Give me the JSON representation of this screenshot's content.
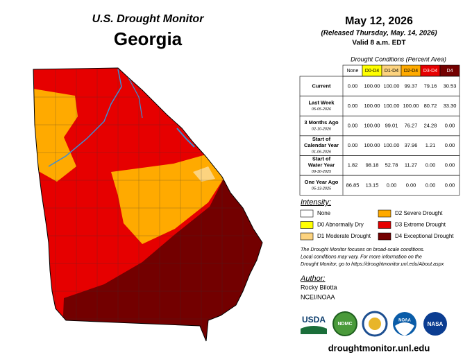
{
  "header": {
    "program": "U.S. Drought Monitor",
    "state": "Georgia",
    "date": "May 12, 2026",
    "released": "(Released Thursday, May. 14, 2026)",
    "valid": "Valid 8 a.m. EDT"
  },
  "table": {
    "caption": "Drought Conditions (Percent Area)",
    "columns": [
      "None",
      "D0-D4",
      "D1-D4",
      "D2-D4",
      "D3-D4",
      "D4"
    ],
    "rows": [
      {
        "label": [
          "Current"
        ],
        "values": [
          "0.00",
          "100.00",
          "100.00",
          "99.37",
          "79.16",
          "30.53"
        ]
      },
      {
        "label": [
          "Last Week"
        ],
        "date": "05-05-2026",
        "values": [
          "0.00",
          "100.00",
          "100.00",
          "100.00",
          "80.72",
          "33.30"
        ]
      },
      {
        "label": [
          "3 Months Ago"
        ],
        "date": "02-10-2026",
        "values": [
          "0.00",
          "100.00",
          "99.01",
          "76.27",
          "24.28",
          "0.00"
        ]
      },
      {
        "label": [
          "Start of",
          "Calendar Year"
        ],
        "date": "01-06-2026",
        "values": [
          "0.00",
          "100.00",
          "100.00",
          "37.96",
          "1.21",
          "0.00"
        ]
      },
      {
        "label": [
          "Start of",
          "Water Year"
        ],
        "date": "09-30-2025",
        "values": [
          "1.82",
          "98.18",
          "52.78",
          "11.27",
          "0.00",
          "0.00"
        ]
      },
      {
        "label": [
          "One Year Ago"
        ],
        "date": "05-13-2025",
        "values": [
          "86.85",
          "13.15",
          "0.00",
          "0.00",
          "0.00",
          "0.00"
        ]
      }
    ]
  },
  "legend": {
    "title": "Intensity:",
    "items": [
      {
        "label": "None",
        "color": "#ffffff"
      },
      {
        "label": "D0 Abnormally Dry",
        "color": "#ffff00"
      },
      {
        "label": "D1 Moderate Drought",
        "color": "#fcd37f"
      },
      {
        "label": "D2 Severe Drought",
        "color": "#ffaa00"
      },
      {
        "label": "D3 Extreme Drought",
        "color": "#e60000"
      },
      {
        "label": "D4 Exceptional Drought",
        "color": "#730000"
      }
    ]
  },
  "note": [
    "The Drought Monitor focuses on broad-scale conditions.",
    "Local conditions may vary. For more information on the",
    "Drought Monitor, go to https://droughtmonitor.unl.edu/About.aspx"
  ],
  "author": {
    "title": "Author:",
    "name": "Rocky Bilotta",
    "org": "NCEI/NOAA"
  },
  "logos": [
    "USDA",
    "NDMC",
    "NOAA",
    "NASA"
  ],
  "url": "droughtmonitor.unl.edu"
}
